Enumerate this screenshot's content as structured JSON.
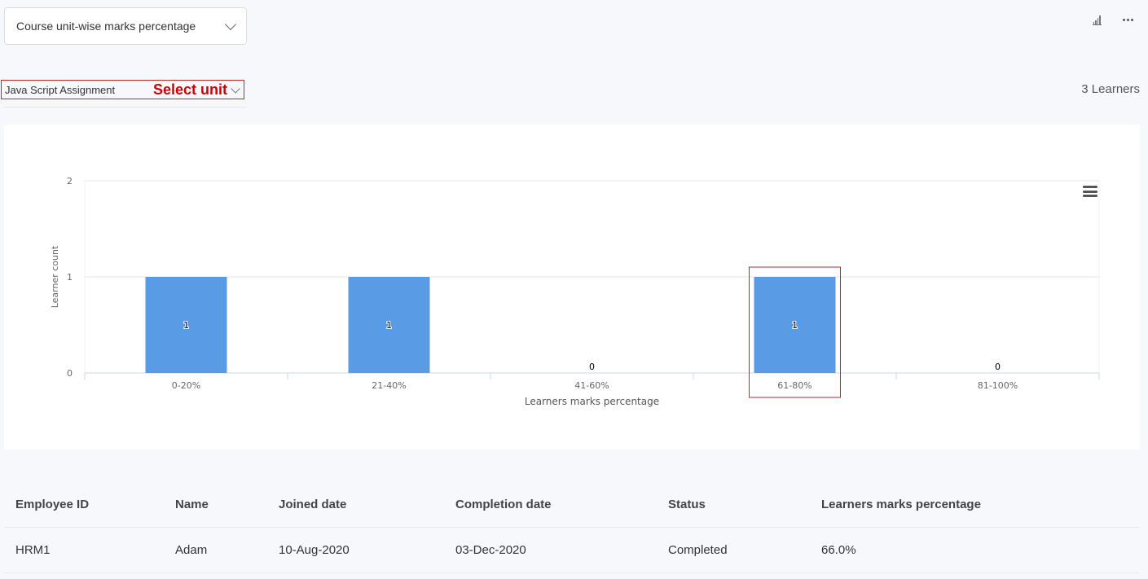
{
  "report_select": {
    "label": "Course unit-wise marks percentage"
  },
  "toolbar": {
    "chart_icon": "bar-chart-icon",
    "more_icon": "more-horizontal-icon"
  },
  "unit_filter": {
    "value": "Java Script Assignment",
    "annotation": "Select unit"
  },
  "learners_count": "3 Learners",
  "chart_data": {
    "type": "bar",
    "categories": [
      "0-20%",
      "21-40%",
      "41-60%",
      "61-80%",
      "81-100%"
    ],
    "values": [
      1,
      1,
      0,
      1,
      0
    ],
    "data_labels": [
      "1",
      "1",
      "0",
      "1",
      "0"
    ],
    "xlabel": "Learners marks percentage",
    "ylabel": "Learner count",
    "ylim": [
      0,
      2
    ],
    "yticks": [
      "0",
      "1",
      "2"
    ],
    "grid": true,
    "bar_color": "#5a9be6",
    "highlight_color": "#c0262c",
    "highlighted_category": "61-80%"
  },
  "table": {
    "columns": [
      "Employee ID",
      "Name",
      "Joined date",
      "Completion date",
      "Status",
      "Learners marks percentage"
    ],
    "rows": [
      [
        "HRM1",
        "Adam",
        "10-Aug-2020",
        "03-Dec-2020",
        "Completed",
        "66.0%"
      ]
    ]
  }
}
